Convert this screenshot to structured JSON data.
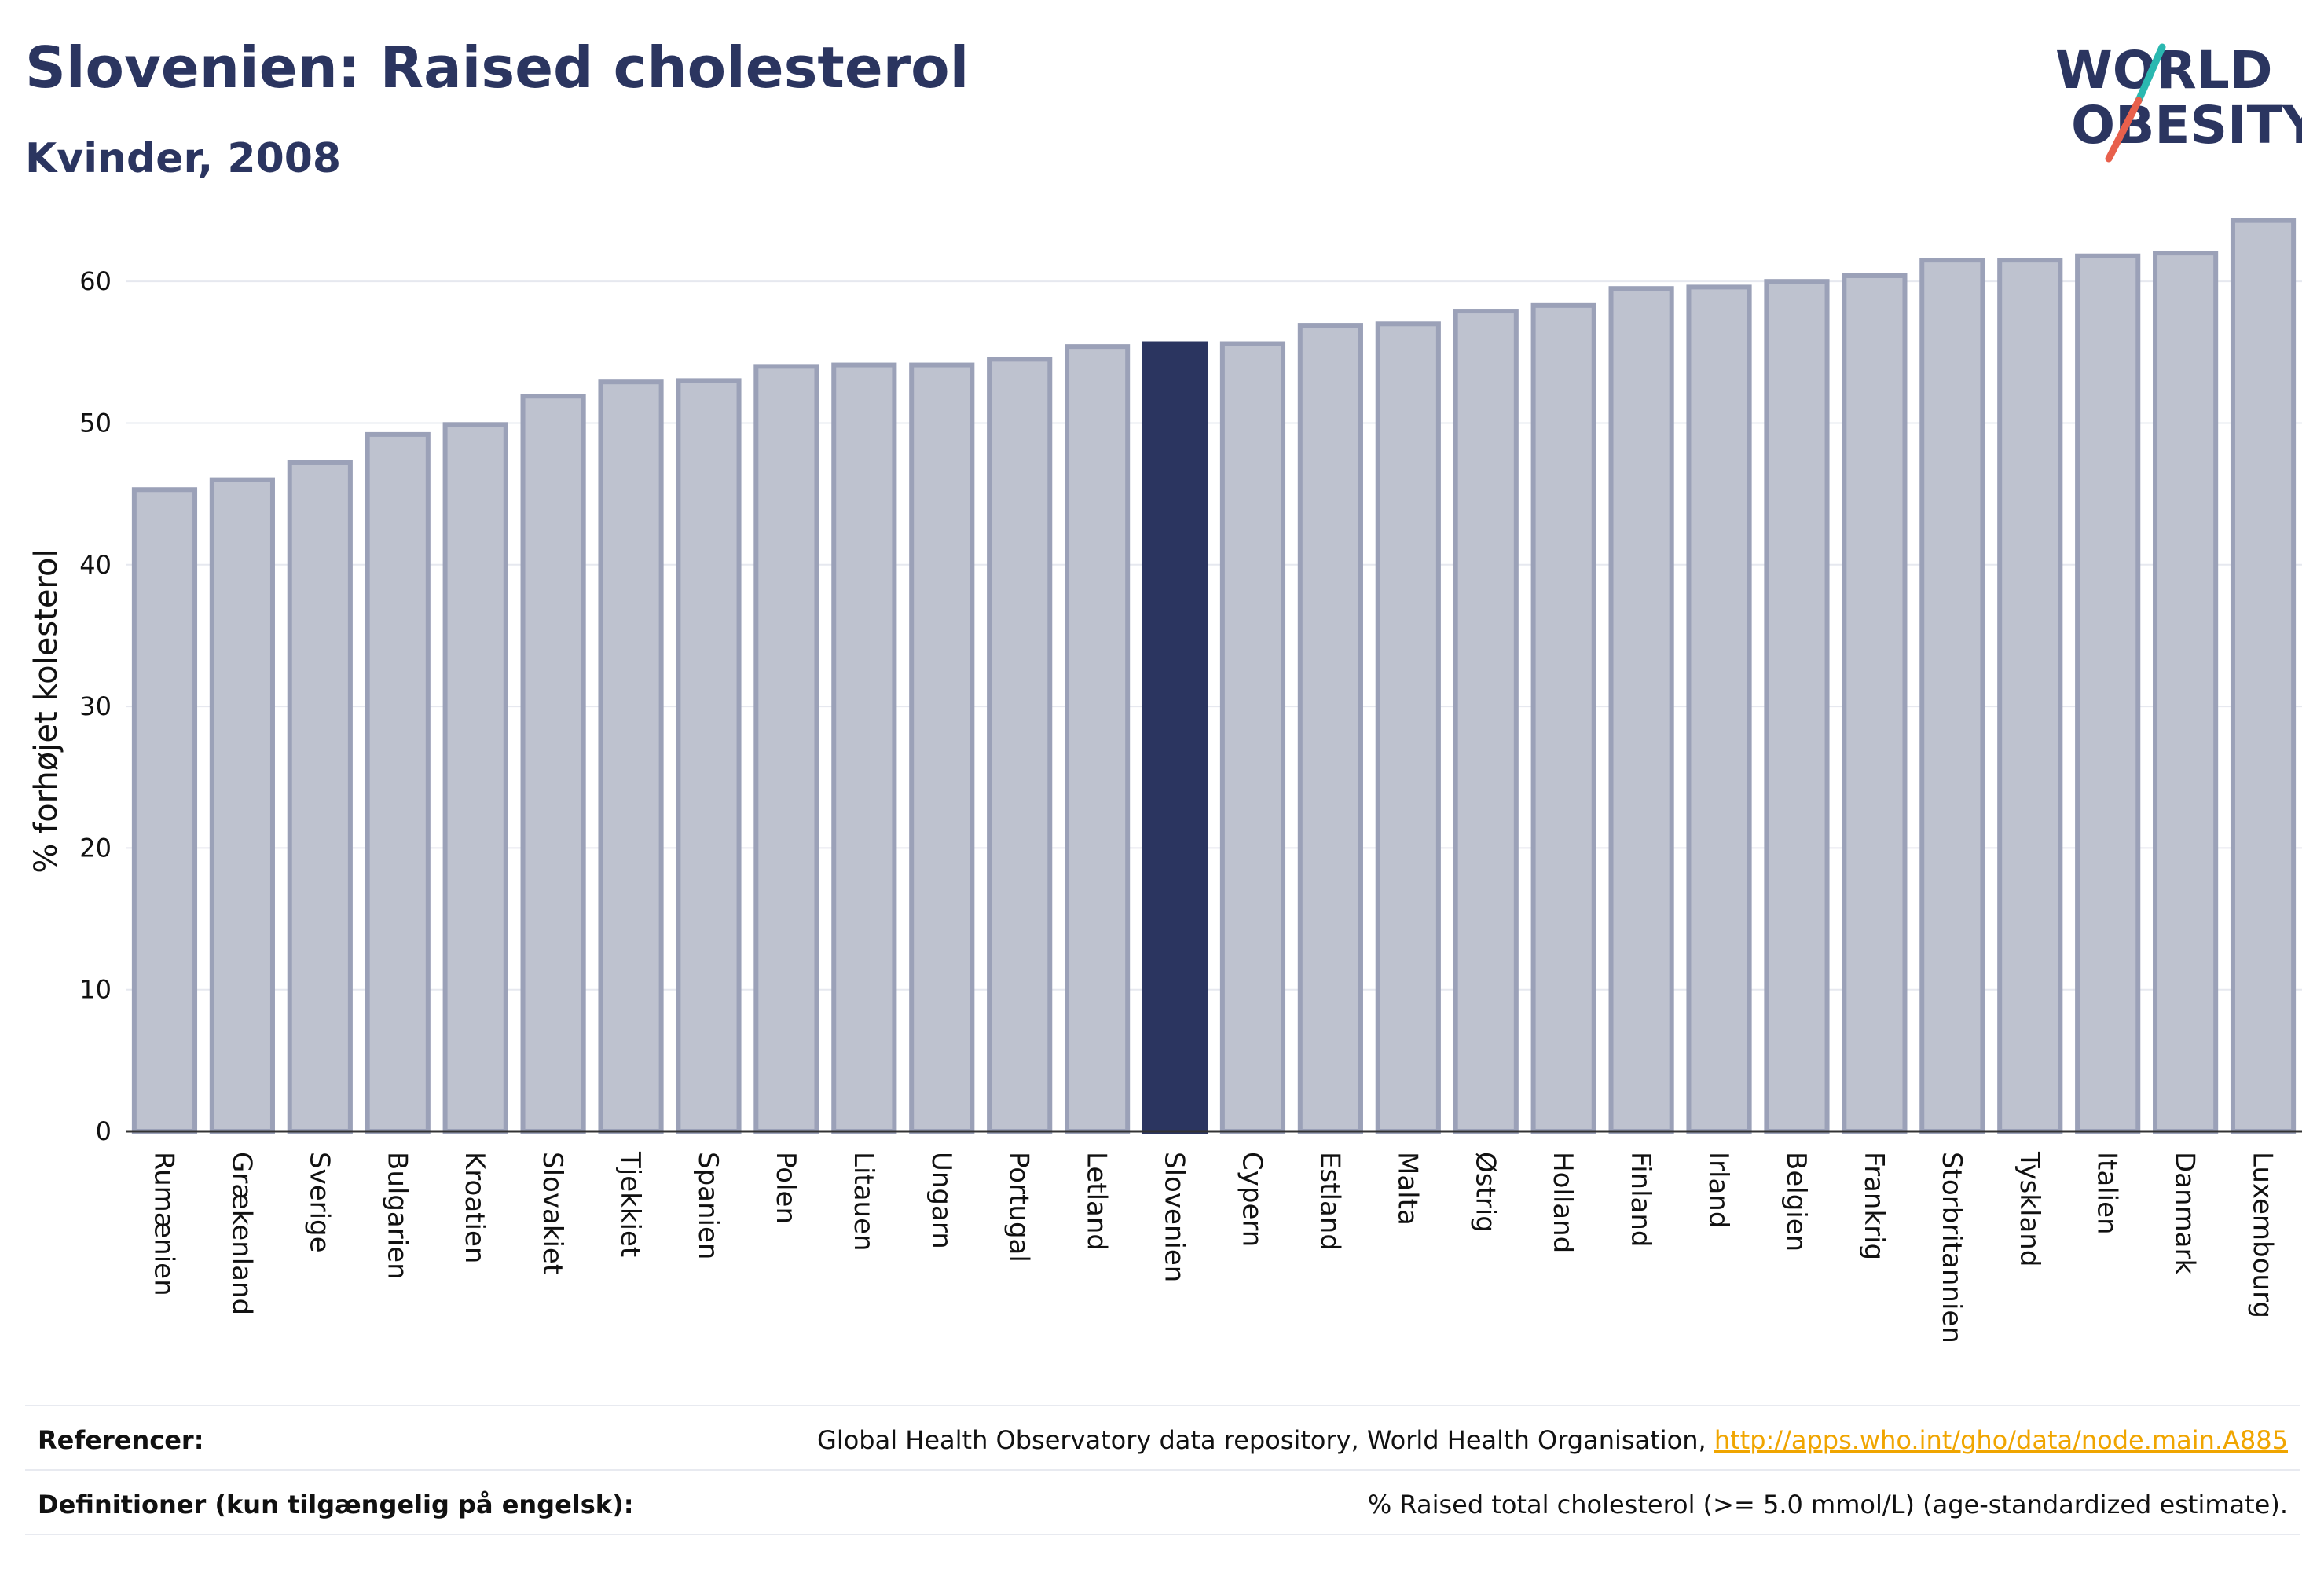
{
  "header": {
    "title": "Slovenien: Raised cholesterol",
    "subtitle": "Kvinder, 2008"
  },
  "logo": {
    "line1": "WORLD",
    "line2": "OBESITY",
    "colors": {
      "text": "#2b3560",
      "slash_red": "#e8604c",
      "slash_teal": "#2ab8b0"
    }
  },
  "chart_data": {
    "type": "bar",
    "title": "Slovenien: Raised cholesterol",
    "subtitle": "Kvinder, 2008",
    "xlabel": "",
    "ylabel": "% forhøjet kolesterol",
    "ylim": [
      0,
      66
    ],
    "yticks": [
      0,
      10,
      20,
      30,
      40,
      50,
      60
    ],
    "grid": true,
    "highlight": "Slovenien",
    "colors": {
      "bar": "#bec2cf",
      "bar_edge": "#9ba1b8",
      "highlight": "#2b3560"
    },
    "categories": [
      "Rumænien",
      "Grækenland",
      "Sverige",
      "Bulgarien",
      "Kroatien",
      "Slovakiet",
      "Tjekkiet",
      "Spanien",
      "Polen",
      "Litauen",
      "Ungarn",
      "Portugal",
      "Letland",
      "Slovenien",
      "Cypern",
      "Estland",
      "Malta",
      "Østrig",
      "Holland",
      "Finland",
      "Irland",
      "Belgien",
      "Frankrig",
      "Storbritannien",
      "Tyskland",
      "Italien",
      "Danmark",
      "Luxembourg"
    ],
    "values": [
      45.3,
      46.0,
      47.2,
      49.2,
      49.9,
      51.9,
      52.9,
      53.0,
      54.0,
      54.1,
      54.1,
      54.5,
      55.4,
      55.6,
      55.6,
      56.9,
      57.0,
      57.9,
      58.3,
      59.5,
      59.6,
      60.0,
      60.4,
      61.5,
      61.5,
      61.8,
      62.0,
      64.3
    ]
  },
  "footer": {
    "references_label": "Referencer:",
    "references_text": "Global Health Observatory data repository, World Health Organisation, ",
    "references_link": "http://apps.who.int/gho/data/node.main.A885",
    "definitions_label": "Definitioner (kun tilgængelig på engelsk):",
    "definitions_text": "% Raised total cholesterol (>= 5.0 mmol/L) (age-standardized estimate)."
  }
}
